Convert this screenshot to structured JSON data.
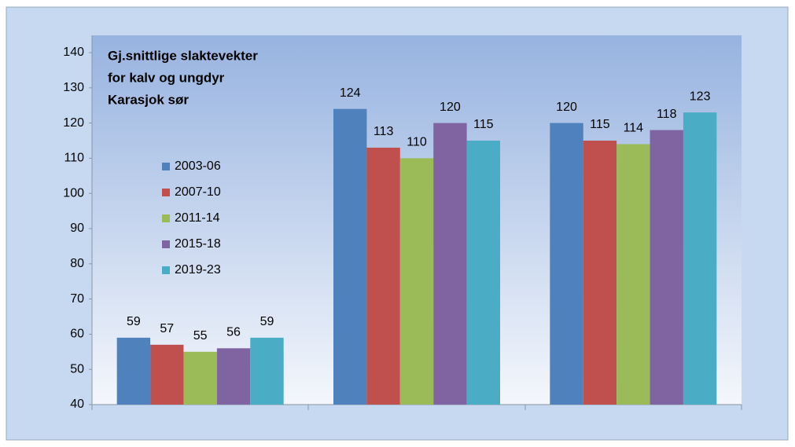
{
  "chart_data": {
    "type": "bar",
    "title": [
      "Gj.snittlige slaktevekter",
      "for kalv og ungdyr",
      "Karasjok sør"
    ],
    "categories": [
      null,
      null,
      null
    ],
    "series": [
      {
        "name": "2003-06",
        "color": "#4f81bd",
        "values": [
          59,
          124,
          120
        ]
      },
      {
        "name": "2007-10",
        "color": "#c0504d",
        "values": [
          57,
          113,
          115
        ]
      },
      {
        "name": "2011-14",
        "color": "#9bbb59",
        "values": [
          55,
          110,
          114
        ]
      },
      {
        "name": "2015-18",
        "color": "#8064a2",
        "values": [
          56,
          120,
          118
        ]
      },
      {
        "name": "2019-23",
        "color": "#4bacc6",
        "values": [
          59,
          115,
          123
        ]
      }
    ],
    "ylim": [
      40,
      140
    ],
    "yticks": [
      40,
      50,
      60,
      70,
      80,
      90,
      100,
      110,
      120,
      130,
      140
    ],
    "grid": false,
    "legend": "left"
  }
}
